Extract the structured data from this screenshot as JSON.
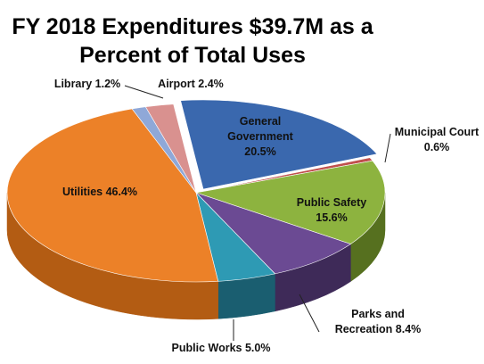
{
  "chart_data": {
    "type": "pie",
    "title_lines": [
      "FY 2018 Expenditures $39.7M as a",
      "Percent of Total Uses"
    ],
    "slices": [
      {
        "name": "General Government",
        "label_lines": [
          "General",
          "Government",
          "20.5%"
        ],
        "value": 20.5,
        "color": "#3A68AE",
        "side_color": "#22407A"
      },
      {
        "name": "Municipal Court",
        "label_lines": [
          "Municipal Court",
          "0.6%"
        ],
        "value": 0.6,
        "color": "#C0504D",
        "side_color": "#7E2E2C"
      },
      {
        "name": "Public Safety",
        "label_lines": [
          "Public Safety",
          "15.6%"
        ],
        "value": 15.6,
        "color": "#8DB33F",
        "side_color": "#56701F"
      },
      {
        "name": "Parks and Recreation",
        "label_lines": [
          "Parks and",
          "Recreation 8.4%"
        ],
        "value": 8.4,
        "color": "#6B4A93",
        "side_color": "#3E2A58"
      },
      {
        "name": "Public Works",
        "label_lines": [
          "Public Works 5.0%"
        ],
        "value": 5.0,
        "color": "#2E9AB4",
        "side_color": "#1A5E70"
      },
      {
        "name": "Utilities",
        "label_lines": [
          "Utilities 46.4%"
        ],
        "value": 46.4,
        "color": "#EC8128",
        "side_color": "#B35C13"
      },
      {
        "name": "Library",
        "label_lines": [
          "Library 1.2%"
        ],
        "value": 1.2,
        "color": "#8FA8D8",
        "side_color": "#5A73A6"
      },
      {
        "name": "Airport",
        "label_lines": [
          "Airport 2.4%"
        ],
        "value": 2.4,
        "color": "#D9918F",
        "side_color": "#A0605E"
      }
    ],
    "legend": "none",
    "style": "3d-exploded-pie"
  }
}
